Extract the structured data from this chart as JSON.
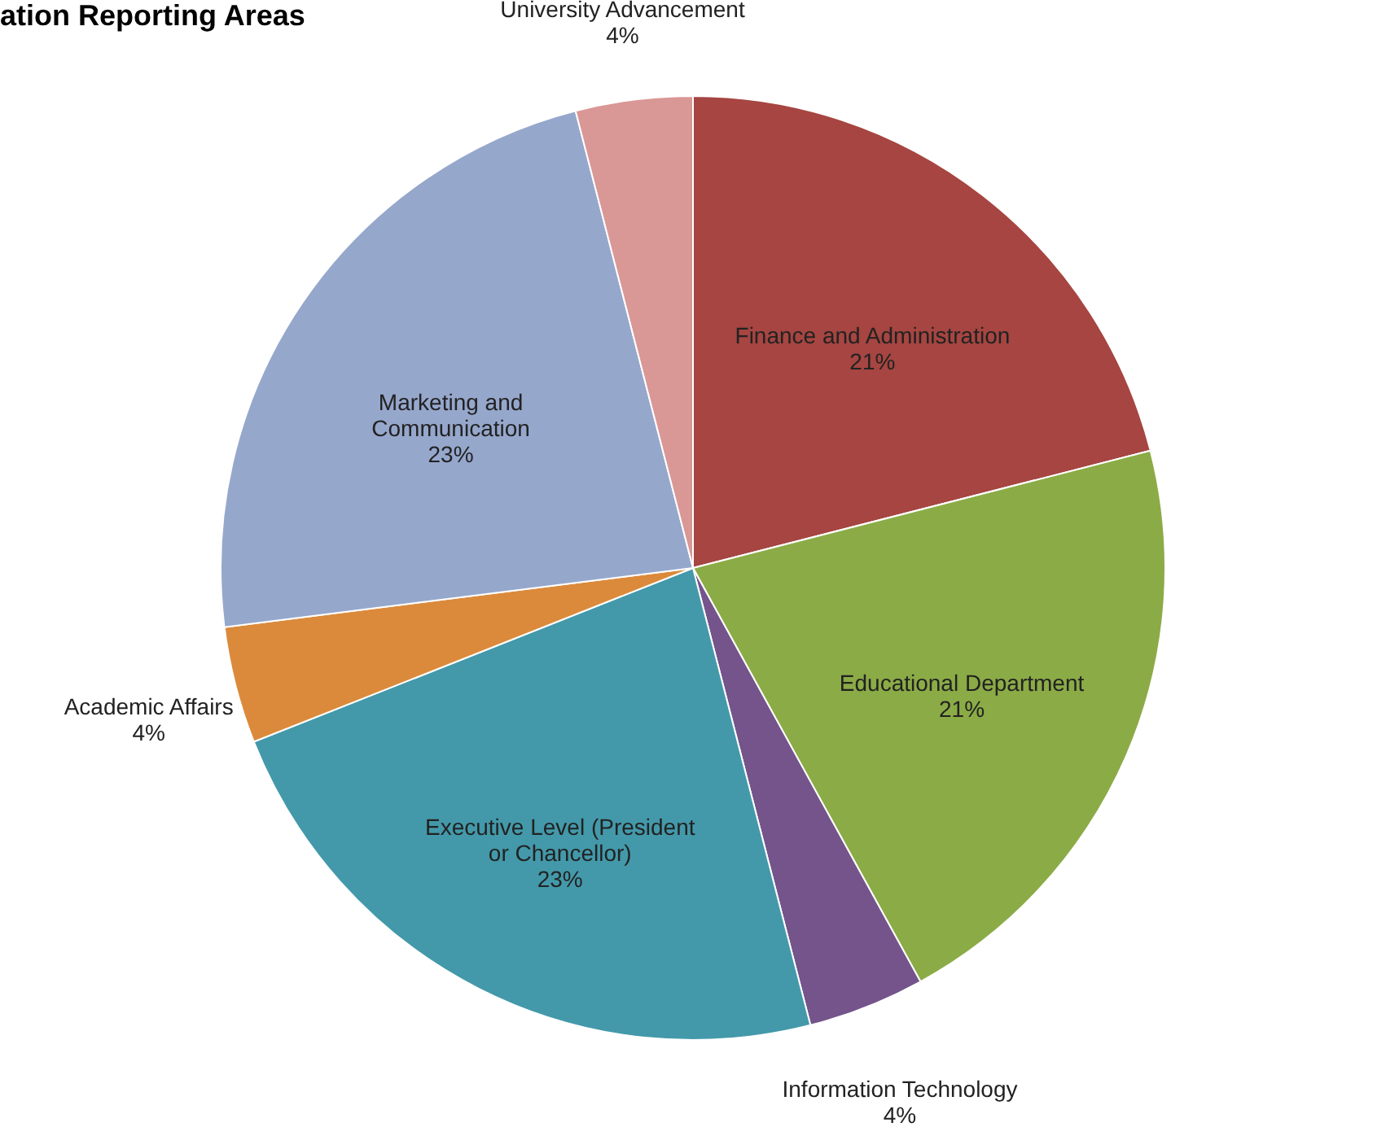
{
  "chart_data": {
    "type": "pie",
    "title": "ation Reporting Areas",
    "categories": [
      "Finance and Administration",
      "Educational Department",
      "Information Technology",
      "Executive Level (President or Chancellor)",
      "Academic Affairs",
      "Marketing and Communication",
      "University Advancement"
    ],
    "values": [
      21,
      21,
      4,
      23,
      4,
      23,
      4
    ],
    "value_labels": [
      "21%",
      "21%",
      "4%",
      "23%",
      "4%",
      "23%",
      "4%"
    ],
    "colors": [
      "#a64541",
      "#8bab46",
      "#74548b",
      "#4399aa",
      "#db8a3b",
      "#96a7cc",
      "#d99795"
    ],
    "legend": false
  }
}
